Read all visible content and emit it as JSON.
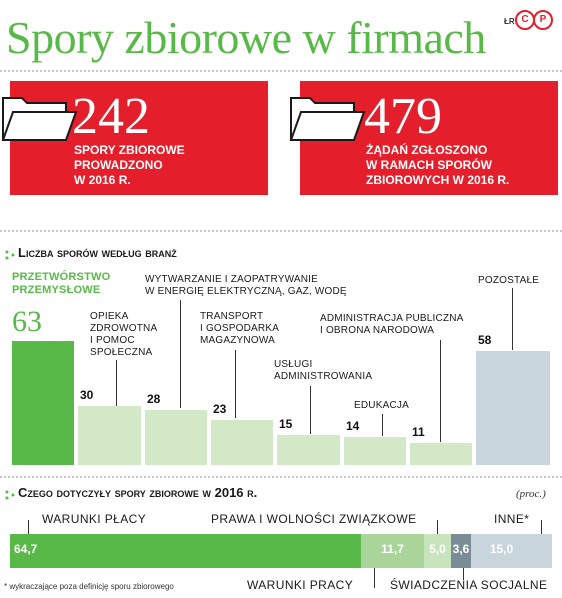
{
  "header": {
    "title": "Spory zbiorowe w firmach",
    "credit": "ŁR",
    "logo_c": "C",
    "logo_p": "P"
  },
  "facts": [
    {
      "number": "242",
      "text": "SPORY ZBIOROWE\nPROWADZONO\nW 2016 R."
    },
    {
      "number": "479",
      "text": "ŻĄDAŃ ZGŁOSZONO\nW RAMACH SPORÓW\nZBIOROWYCH W 2016 R."
    }
  ],
  "chart_data": [
    {
      "type": "bar",
      "title": "Liczba sporów według branż",
      "categories": [
        "Przetwórstwo przemysłowe",
        "Opieka zdrowotna i pomoc społeczna",
        "Wytwarzanie i zaopatrywanie w energię elektryczną, gaz, wodę",
        "Transport i gospodarka magazynowa",
        "Usługi administrowania",
        "Edukacja",
        "Administracja publiczna i obrona narodowa",
        "Pozostałe"
      ],
      "category_labels": [
        "PRZETWÓRSTWO\nPRZEMYSŁOWE",
        "OPIEKA\nZDROWOTNA\nI POMOC\nSPOŁECZNA",
        "WYTWARZANIE I ZAOPATRYWANIE\nW ENERGIĘ ELEKTRYCZNĄ, GAZ, WODĘ",
        "TRANSPORT\nI GOSPODARKA\nMAGAZYNOWA",
        "USŁUGI\nADMINISTROWANIA",
        "EDUKACJA",
        "ADMINISTRACJA PUBLICZNA\nI OBRONA NARODOWA",
        "POZOSTAŁE"
      ],
      "values": [
        63,
        30,
        28,
        23,
        15,
        14,
        11,
        58
      ],
      "value_labels": [
        "63",
        "30",
        "28",
        "23",
        "15",
        "14",
        "11",
        "58"
      ],
      "ylim": [
        0,
        63
      ],
      "grid": false,
      "colors": {
        "highlight": "#59b948",
        "normal": "#d2e8c6",
        "other": "#c9d5dc"
      }
    },
    {
      "type": "bar",
      "orientation": "horizontal-stacked",
      "title": "Czego dotyczyły spory zbiorowe w 2016 r.",
      "unit": "(proc.)",
      "categories": [
        "Warunki płacy",
        "Warunki pracy",
        "Prawa i wolności związkowe",
        "Świadczenia socjalne",
        "Inne*"
      ],
      "category_labels": [
        "WARUNKI PŁACY",
        "WARUNKI PRACY",
        "PRAWA I WOLNOŚCI ZWIĄZKOWE",
        "ŚWIADCZENIA SOCJALNE",
        "INNE*"
      ],
      "values": [
        64.7,
        11.7,
        5.0,
        3.6,
        15.0
      ],
      "value_labels": [
        "64,7",
        "11,7",
        "5,0",
        "3,6",
        "15,0"
      ],
      "colors": [
        "#59b948",
        "#a9d59a",
        "#c8e4bc",
        "#7b8c96",
        "#c9d5dc"
      ],
      "note": "* wykraczające poza definicję sporu zbiorowego"
    }
  ]
}
